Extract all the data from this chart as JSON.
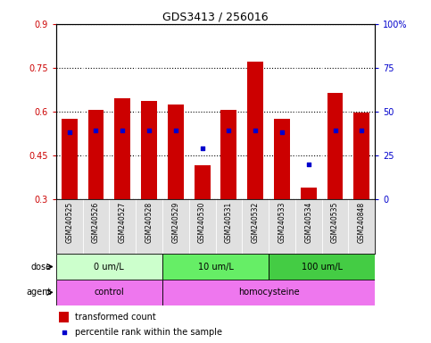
{
  "title": "GDS3413 / 256016",
  "samples": [
    "GSM240525",
    "GSM240526",
    "GSM240527",
    "GSM240528",
    "GSM240529",
    "GSM240530",
    "GSM240531",
    "GSM240532",
    "GSM240533",
    "GSM240534",
    "GSM240535",
    "GSM240848"
  ],
  "bar_bottoms": [
    0.3,
    0.3,
    0.3,
    0.3,
    0.3,
    0.3,
    0.3,
    0.3,
    0.3,
    0.3,
    0.3,
    0.3
  ],
  "bar_tops": [
    0.575,
    0.605,
    0.645,
    0.635,
    0.625,
    0.415,
    0.605,
    0.77,
    0.575,
    0.34,
    0.665,
    0.595
  ],
  "percentile_pct": [
    38,
    39,
    39,
    39,
    39,
    29,
    39,
    39,
    38,
    20,
    39,
    39
  ],
  "ylim_left": [
    0.3,
    0.9
  ],
  "ylim_right": [
    0,
    100
  ],
  "yticks_left": [
    0.3,
    0.45,
    0.6,
    0.75,
    0.9
  ],
  "ytick_labels_left": [
    "0.3",
    "0.45",
    "0.6",
    "0.75",
    "0.9"
  ],
  "yticks_right": [
    0,
    25,
    50,
    75,
    100
  ],
  "ytick_labels_right": [
    "0",
    "25",
    "50",
    "75",
    "100%"
  ],
  "bar_color": "#cc0000",
  "dot_color": "#0000cc",
  "dose_groups": [
    {
      "label": "0 um/L",
      "start": 0,
      "end": 4,
      "color": "#ccffcc"
    },
    {
      "label": "10 um/L",
      "start": 4,
      "end": 8,
      "color": "#66ee66"
    },
    {
      "label": "100 um/L",
      "start": 8,
      "end": 12,
      "color": "#44cc44"
    }
  ],
  "agent_groups": [
    {
      "label": "control",
      "start": 0,
      "end": 4,
      "color": "#ee77ee"
    },
    {
      "label": "homocysteine",
      "start": 4,
      "end": 12,
      "color": "#ee77ee"
    }
  ],
  "dose_label": "dose",
  "agent_label": "agent",
  "legend_bar_label": "transformed count",
  "legend_dot_label": "percentile rank within the sample",
  "panel_color": "#e0e0e0",
  "plot_bg": "#ffffff"
}
